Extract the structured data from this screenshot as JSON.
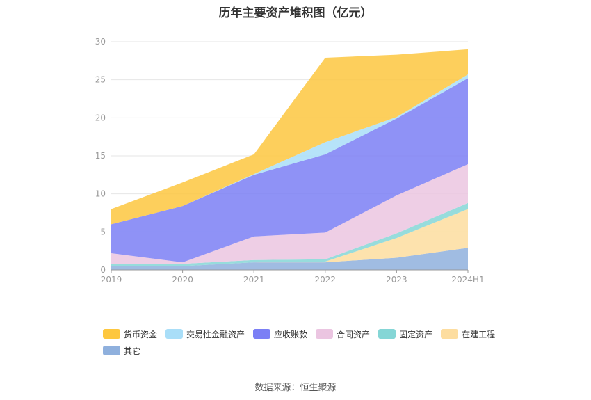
{
  "chart_data": {
    "type": "area",
    "title": "历年主要资产堆积图（亿元）",
    "stacked": true,
    "categories": [
      "2019",
      "2020",
      "2021",
      "2022",
      "2023",
      "2024H1"
    ],
    "ylim": [
      0,
      30
    ],
    "yticks": [
      "0",
      "5",
      "10",
      "15",
      "20",
      "25",
      "30"
    ],
    "grid": true,
    "legend_position": "bottom-left",
    "series": [
      {
        "name": "其它",
        "color": "#8fb0dd",
        "values": [
          0.5,
          0.5,
          1.0,
          1.0,
          1.6,
          2.9
        ]
      },
      {
        "name": "在建工程",
        "color": "#fddd9f",
        "values": [
          0.0,
          0.0,
          0.0,
          0.1,
          2.6,
          5.1
        ]
      },
      {
        "name": "固定资产",
        "color": "#85d6d6",
        "values": [
          0.3,
          0.3,
          0.3,
          0.3,
          0.6,
          0.8
        ]
      },
      {
        "name": "合同资产",
        "color": "#ebc5e1",
        "values": [
          1.4,
          0.2,
          3.1,
          3.5,
          5.0,
          5.1
        ]
      },
      {
        "name": "应收账款",
        "color": "#7b7ff5",
        "values": [
          3.8,
          7.4,
          8.1,
          10.3,
          10.1,
          11.3
        ]
      },
      {
        "name": "交易性金融资产",
        "color": "#a9def8",
        "values": [
          0.0,
          0.0,
          0.1,
          1.6,
          0.2,
          0.5
        ]
      },
      {
        "name": "货币资金",
        "color": "#fdc73f",
        "values": [
          2.0,
          3.1,
          2.6,
          11.1,
          8.2,
          3.3
        ]
      }
    ],
    "legend_order": [
      "货币资金",
      "交易性金融资产",
      "应收账款",
      "合同资产",
      "固定资产",
      "在建工程",
      "其它"
    ]
  },
  "source": "数据来源：恒生聚源"
}
